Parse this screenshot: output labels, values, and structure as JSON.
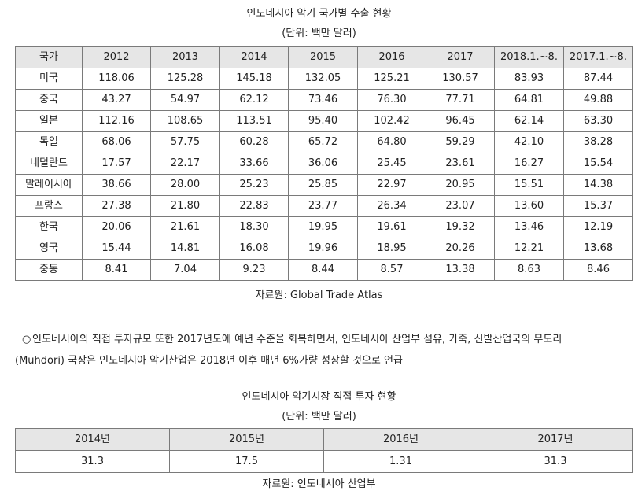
{
  "table1": {
    "title": "인도네시아 악기 국가별 수출 현황",
    "unit": "(단위: 백만 달러)",
    "headers": [
      "국가",
      "2012",
      "2013",
      "2014",
      "2015",
      "2016",
      "2017",
      "2018.1.~8.",
      "2017.1.~8."
    ],
    "rows": [
      [
        "미국",
        "118.06",
        "125.28",
        "145.18",
        "132.05",
        "125.21",
        "130.57",
        "83.93",
        "87.44"
      ],
      [
        "중국",
        "43.27",
        "54.97",
        "62.12",
        "73.46",
        "76.30",
        "77.71",
        "64.81",
        "49.88"
      ],
      [
        "일본",
        "112.16",
        "108.65",
        "113.51",
        "95.40",
        "102.42",
        "96.45",
        "62.14",
        "63.30"
      ],
      [
        "독일",
        "68.06",
        "57.75",
        "60.28",
        "65.72",
        "64.80",
        "59.29",
        "42.10",
        "38.28"
      ],
      [
        "네덜란드",
        "17.57",
        "22.17",
        "33.66",
        "36.06",
        "25.45",
        "23.61",
        "16.27",
        "15.54"
      ],
      [
        "말레이시아",
        "38.66",
        "28.00",
        "25.23",
        "25.85",
        "22.97",
        "20.95",
        "15.51",
        "14.38"
      ],
      [
        "프랑스",
        "27.38",
        "21.80",
        "22.83",
        "23.77",
        "26.34",
        "23.07",
        "13.60",
        "15.37"
      ],
      [
        "한국",
        "20.06",
        "21.61",
        "18.30",
        "19.95",
        "19.61",
        "19.32",
        "13.46",
        "12.19"
      ],
      [
        "영국",
        "15.44",
        "14.81",
        "16.08",
        "19.96",
        "18.95",
        "20.26",
        "12.21",
        "13.68"
      ],
      [
        "중동",
        "8.41",
        "7.04",
        "9.23",
        "8.44",
        "8.57",
        "13.38",
        "8.63",
        "8.46"
      ]
    ],
    "source": "자료원: Global Trade Atlas"
  },
  "paragraph": {
    "bullet": "○",
    "line1": "인도네시아의 직접 투자규모 또한 2017년도에 예년 수준을 회복하면서, 인도네시아 산업부 섬유, 가죽, 신발산업국의 무도리",
    "line2": "(Muhdori) 국장은 인도네시아 악기산업은 2018년 이후 매년 6%가량 성장할 것으로 언급"
  },
  "table2": {
    "title": "인도네시아 악기시장 직접 투자 현황",
    "unit": "(단위: 백만 달러)",
    "headers": [
      "2014년",
      "2015년",
      "2016년",
      "2017년"
    ],
    "values": [
      "31.3",
      "17.5",
      "1.31",
      "31.3"
    ],
    "source": "자료원: 인도네시아 산업부"
  }
}
